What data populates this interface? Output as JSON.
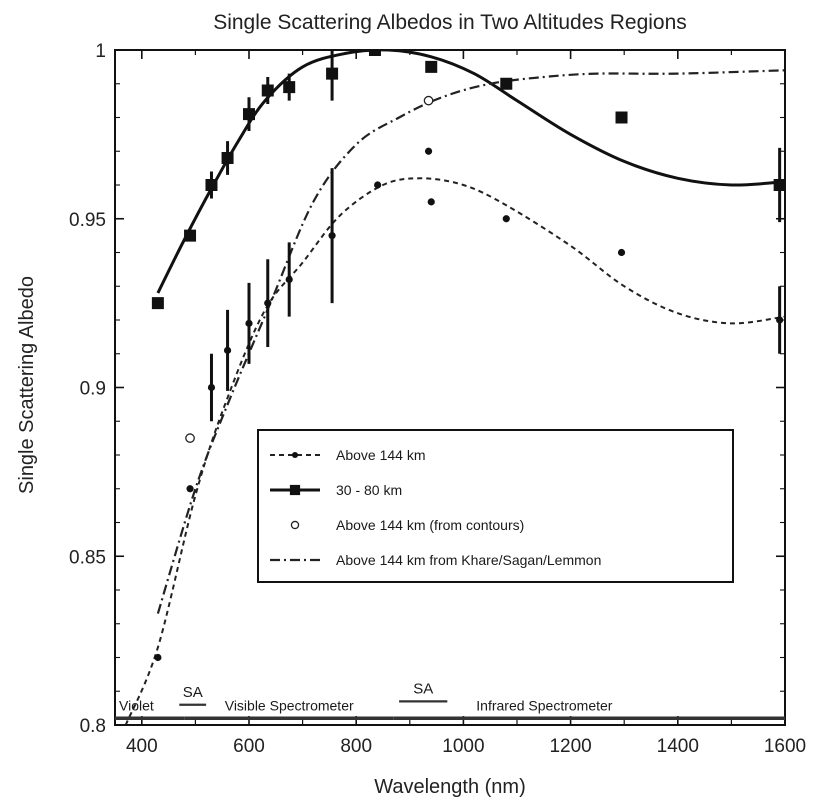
{
  "chart_data": {
    "type": "scatter",
    "title": "Single Scattering Albedos in Two Altitudes Regions",
    "xlabel": "Wavelength (nm)",
    "ylabel": "Single Scattering Albedo",
    "xlim": [
      350,
      1600
    ],
    "ylim": [
      0.8,
      1.0
    ],
    "x_ticks": [
      400,
      600,
      800,
      1000,
      1200,
      1400,
      1600
    ],
    "y_ticks": [
      0.8,
      0.85,
      0.9,
      0.95,
      1.0
    ],
    "x_tick_labels": [
      "400",
      "600",
      "800",
      "1000",
      "1200",
      "1400",
      "1600"
    ],
    "y_tick_labels": [
      "0.8",
      "0.85",
      "0.9",
      "0.95",
      "1"
    ],
    "grid": false,
    "legend_position": "center-right",
    "series": [
      {
        "name": "Above 144 km",
        "marker": "filled-circle",
        "line": "dashed",
        "points": [
          {
            "x": 430,
            "y": 0.82
          },
          {
            "x": 490,
            "y": 0.87
          },
          {
            "x": 530,
            "y": 0.9,
            "err": 0.01
          },
          {
            "x": 560,
            "y": 0.911,
            "err": 0.012
          },
          {
            "x": 600,
            "y": 0.919,
            "err": 0.012
          },
          {
            "x": 635,
            "y": 0.925,
            "err": 0.013
          },
          {
            "x": 675,
            "y": 0.932,
            "err": 0.011
          },
          {
            "x": 755,
            "y": 0.945,
            "err": 0.02
          },
          {
            "x": 840,
            "y": 0.96
          },
          {
            "x": 935,
            "y": 0.97
          },
          {
            "x": 940,
            "y": 0.955
          },
          {
            "x": 1080,
            "y": 0.95
          },
          {
            "x": 1295,
            "y": 0.94
          },
          {
            "x": 1590,
            "y": 0.92,
            "err": 0.01
          }
        ],
        "curve": [
          {
            "x": 370,
            "y": 0.8
          },
          {
            "x": 430,
            "y": 0.823
          },
          {
            "x": 500,
            "y": 0.868
          },
          {
            "x": 560,
            "y": 0.897
          },
          {
            "x": 630,
            "y": 0.923
          },
          {
            "x": 700,
            "y": 0.937
          },
          {
            "x": 770,
            "y": 0.951
          },
          {
            "x": 850,
            "y": 0.96
          },
          {
            "x": 920,
            "y": 0.962
          },
          {
            "x": 1000,
            "y": 0.96
          },
          {
            "x": 1080,
            "y": 0.954
          },
          {
            "x": 1200,
            "y": 0.942
          },
          {
            "x": 1300,
            "y": 0.93
          },
          {
            "x": 1400,
            "y": 0.922
          },
          {
            "x": 1500,
            "y": 0.919
          },
          {
            "x": 1600,
            "y": 0.921
          }
        ]
      },
      {
        "name": "30 - 80 km",
        "marker": "filled-square",
        "line": "solid",
        "points": [
          {
            "x": 430,
            "y": 0.925
          },
          {
            "x": 490,
            "y": 0.945
          },
          {
            "x": 530,
            "y": 0.96,
            "err": 0.004
          },
          {
            "x": 560,
            "y": 0.968,
            "err": 0.005
          },
          {
            "x": 600,
            "y": 0.981,
            "err": 0.005
          },
          {
            "x": 635,
            "y": 0.988,
            "err": 0.004
          },
          {
            "x": 675,
            "y": 0.989,
            "err": 0.004
          },
          {
            "x": 755,
            "y": 0.993,
            "err": 0.008
          },
          {
            "x": 835,
            "y": 1.0
          },
          {
            "x": 940,
            "y": 0.995
          },
          {
            "x": 1080,
            "y": 0.99
          },
          {
            "x": 1295,
            "y": 0.98
          },
          {
            "x": 1590,
            "y": 0.96,
            "err": 0.011
          }
        ],
        "curve": [
          {
            "x": 430,
            "y": 0.928
          },
          {
            "x": 480,
            "y": 0.944
          },
          {
            "x": 530,
            "y": 0.959
          },
          {
            "x": 580,
            "y": 0.973
          },
          {
            "x": 630,
            "y": 0.985
          },
          {
            "x": 700,
            "y": 0.995
          },
          {
            "x": 780,
            "y": 0.999
          },
          {
            "x": 860,
            "y": 1.0
          },
          {
            "x": 940,
            "y": 0.998
          },
          {
            "x": 1020,
            "y": 0.993
          },
          {
            "x": 1100,
            "y": 0.985
          },
          {
            "x": 1200,
            "y": 0.975
          },
          {
            "x": 1300,
            "y": 0.967
          },
          {
            "x": 1400,
            "y": 0.962
          },
          {
            "x": 1500,
            "y": 0.96
          },
          {
            "x": 1600,
            "y": 0.961
          }
        ]
      },
      {
        "name": "Above 144 km (from contours)",
        "marker": "open-circle",
        "line": "none",
        "points": [
          {
            "x": 490,
            "y": 0.885
          },
          {
            "x": 935,
            "y": 0.985
          }
        ]
      },
      {
        "name": "Above 144 km from Khare/Sagan/Lemmon",
        "marker": "none",
        "line": "dash-dot",
        "curve": [
          {
            "x": 430,
            "y": 0.833
          },
          {
            "x": 500,
            "y": 0.87
          },
          {
            "x": 560,
            "y": 0.895
          },
          {
            "x": 640,
            "y": 0.925
          },
          {
            "x": 720,
            "y": 0.955
          },
          {
            "x": 800,
            "y": 0.972
          },
          {
            "x": 880,
            "y": 0.98
          },
          {
            "x": 960,
            "y": 0.986
          },
          {
            "x": 1050,
            "y": 0.99
          },
          {
            "x": 1150,
            "y": 0.992
          },
          {
            "x": 1250,
            "y": 0.993
          },
          {
            "x": 1400,
            "y": 0.993
          },
          {
            "x": 1600,
            "y": 0.994
          }
        ]
      }
    ],
    "bands": [
      {
        "label": "Violet",
        "x1": 350,
        "x2": 480,
        "y": 0.802
      },
      {
        "label": "SA",
        "x1": 470,
        "x2": 520,
        "y": 0.806
      },
      {
        "label": "Visible Spectrometer",
        "x1": 480,
        "x2": 870,
        "y": 0.802
      },
      {
        "label": "SA",
        "x1": 880,
        "x2": 970,
        "y": 0.807
      },
      {
        "label": "Infrared Spectrometer",
        "x1": 870,
        "x2": 1600,
        "y": 0.802
      }
    ]
  }
}
